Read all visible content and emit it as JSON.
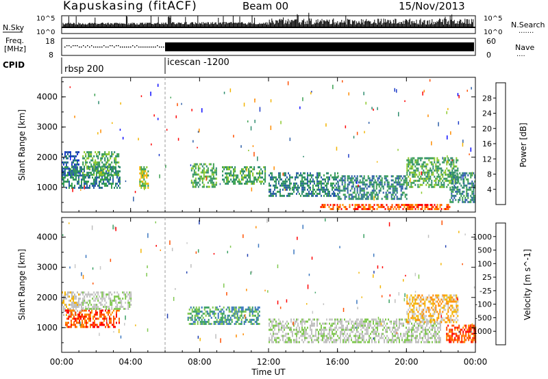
{
  "header": {
    "station": "Kapuskasing (fitACF)",
    "beam": "Beam 00",
    "date": "15/Nov/2013"
  },
  "strip_nsky": {
    "left_label": "N.Sky",
    "ticks_left": [
      "10^5",
      "10^0"
    ],
    "ticks_right": [
      "10^5",
      "10^0"
    ],
    "right_label": "N.Search",
    "dots": "......."
  },
  "strip_freq": {
    "label_top": "Freq.",
    "label_bottom": "[MHz]",
    "ticks_left": [
      "18",
      "8"
    ],
    "ticks_right": [
      "60",
      "0"
    ],
    "right_label": "Nave",
    "dots": "...."
  },
  "cpid": {
    "label": "CPID",
    "segments": [
      {
        "name": "rbsp 200",
        "start_hour": 0
      },
      {
        "name": "icescan -1200",
        "start_hour": 6
      }
    ]
  },
  "xaxis": {
    "label": "Time UT",
    "ticks": [
      "00:00",
      "04:00",
      "08:00",
      "12:00",
      "16:00",
      "20:00",
      "00:00"
    ],
    "range_hours": [
      0,
      24
    ]
  },
  "chart_data": [
    {
      "type": "heatmap",
      "panel": "power",
      "ylabel": "Slant Range [km]",
      "yticks": [
        "1000",
        "2000",
        "3000",
        "4000"
      ],
      "ylim": [
        180,
        4650
      ],
      "xlim": [
        0,
        24
      ],
      "colorbar_label": "Power [dB]",
      "colorbar_ticks": [
        "28",
        "24",
        "20",
        "16",
        "12",
        "8",
        "4"
      ],
      "colorbar_colors": [
        "#ff0000",
        "#ff5000",
        "#ff8c00",
        "#f2b400",
        "#8cc82b",
        "#3aa050",
        "#2e8c6e",
        "#2d5fa8",
        "#1e3cc8",
        "#0a0aff"
      ],
      "regions": [
        {
          "t": [
            0.0,
            1.0
          ],
          "r": [
            1400,
            2200
          ],
          "level": 7
        },
        {
          "t": [
            0.0,
            3.4
          ],
          "r": [
            1000,
            1700
          ],
          "level": 6
        },
        {
          "t": [
            1.2,
            3.3
          ],
          "r": [
            1400,
            2200
          ],
          "level": 5
        },
        {
          "t": [
            4.5,
            5.0
          ],
          "r": [
            1000,
            1700
          ],
          "level": 4
        },
        {
          "t": [
            7.5,
            9.0
          ],
          "r": [
            1000,
            1800
          ],
          "level": 5
        },
        {
          "t": [
            9.3,
            11.8
          ],
          "r": [
            1100,
            1700
          ],
          "level": 5
        },
        {
          "t": [
            12.0,
            16.0
          ],
          "r": [
            700,
            1500
          ],
          "level": 6
        },
        {
          "t": [
            16.0,
            20.0
          ],
          "r": [
            600,
            1400
          ],
          "level": 6
        },
        {
          "t": [
            20.0,
            23.0
          ],
          "r": [
            1000,
            2000
          ],
          "level": 5
        },
        {
          "t": [
            15.0,
            22.5
          ],
          "r": [
            250,
            450
          ],
          "level": 1
        },
        {
          "t": [
            22.5,
            24.0
          ],
          "r": [
            500,
            1500
          ],
          "level": 6
        }
      ]
    },
    {
      "type": "heatmap",
      "panel": "velocity",
      "ylabel": "Slant Range [km]",
      "yticks": [
        "1000",
        "2000",
        "3000",
        "4000"
      ],
      "ylim": [
        180,
        4650
      ],
      "xlim": [
        0,
        24
      ],
      "colorbar_label": "Velocity [m s^-1]",
      "colorbar_ticks": [
        "1000",
        "500",
        "100",
        "25",
        "-25",
        "-100",
        "-500",
        "-1000"
      ],
      "colorbar_colors": [
        "#2040b0",
        "#3c78c0",
        "#3aa062",
        "#80c850",
        "#bebebe",
        "#c8c8c8",
        "#f2b400",
        "#ff8c00",
        "#ff5000",
        "#ff0000"
      ],
      "regions": [
        {
          "t": [
            0.0,
            1.2
          ],
          "r": [
            1400,
            2200
          ],
          "level": 5
        },
        {
          "t": [
            0.2,
            3.3
          ],
          "r": [
            1000,
            1600
          ],
          "level": 8
        },
        {
          "t": [
            1.2,
            4.0
          ],
          "r": [
            1600,
            2200
          ],
          "level": 4
        },
        {
          "t": [
            7.3,
            11.5
          ],
          "r": [
            1100,
            1700
          ],
          "level": 2
        },
        {
          "t": [
            12.0,
            22.0
          ],
          "r": [
            500,
            1300
          ],
          "level": 4
        },
        {
          "t": [
            20.0,
            23.0
          ],
          "r": [
            1200,
            2100
          ],
          "level": 6
        },
        {
          "t": [
            22.3,
            24.0
          ],
          "r": [
            500,
            1100
          ],
          "level": 8
        }
      ]
    }
  ]
}
